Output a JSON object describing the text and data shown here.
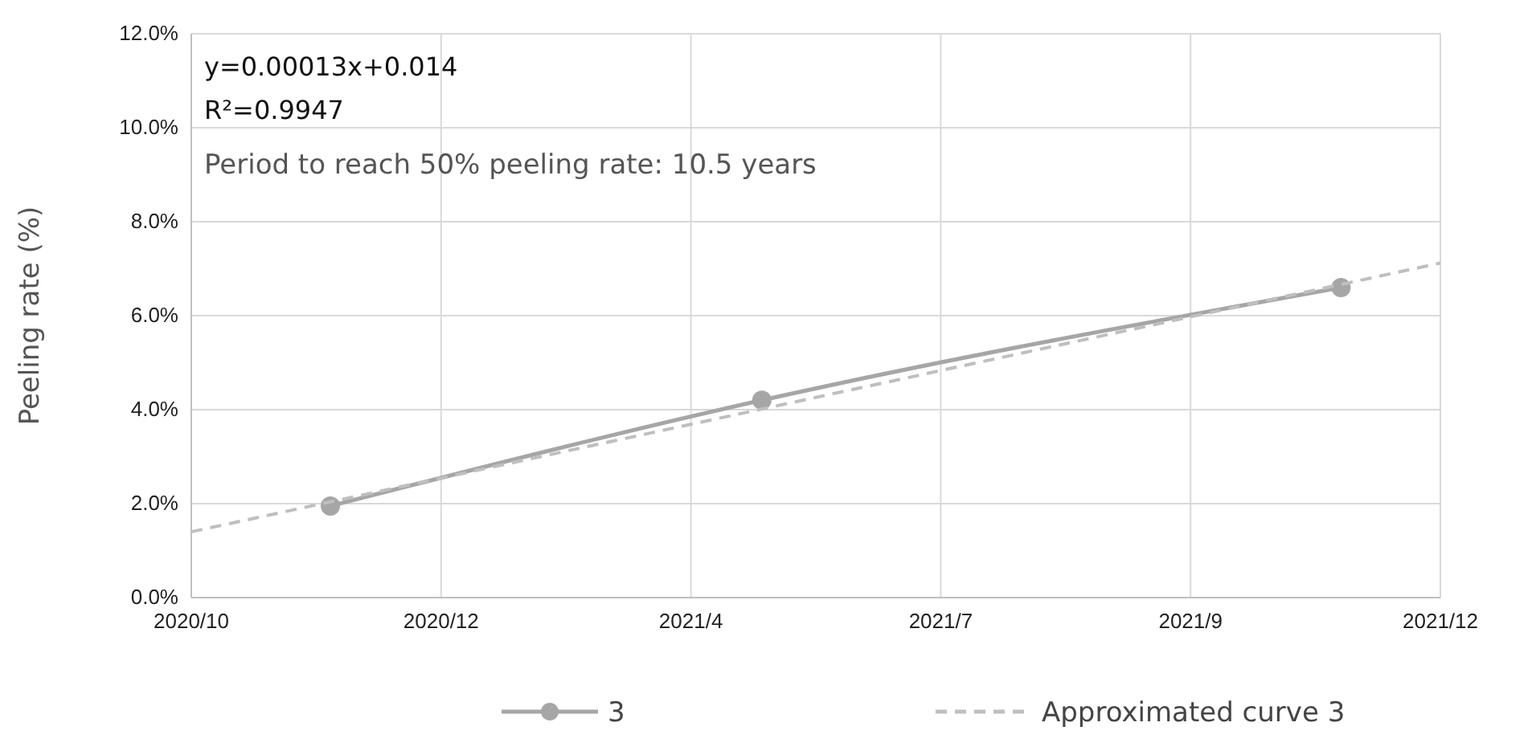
{
  "chart_data": {
    "type": "line",
    "ylabel": "Peeling rate (%)",
    "xlim": [
      "2020-10-01",
      "2021-12-15"
    ],
    "xticks": [
      {
        "value": "2020-10-01",
        "label": "2020/10"
      },
      {
        "value": "2020-12-28",
        "label": "2020/12"
      },
      {
        "value": "2021-03-26",
        "label": "2021/4"
      },
      {
        "value": "2021-06-22",
        "label": "2021/7"
      },
      {
        "value": "2021-09-18",
        "label": "2021/9"
      },
      {
        "value": "2021-12-15",
        "label": "2021/12"
      }
    ],
    "ylim": [
      0,
      12
    ],
    "yticks": [
      {
        "value": 0,
        "label": "0.0%"
      },
      {
        "value": 2,
        "label": "2.0%"
      },
      {
        "value": 4,
        "label": "4.0%"
      },
      {
        "value": 6,
        "label": "6.0%"
      },
      {
        "value": 8,
        "label": "8.0%"
      },
      {
        "value": 10,
        "label": "10.0%"
      },
      {
        "value": 12,
        "label": "12.0%"
      }
    ],
    "grid": true,
    "legend": "bottom",
    "series": [
      {
        "name": "3",
        "color": "#a6a6a6",
        "x": [
          "2020-11-19",
          "2021-04-20",
          "2021-11-10"
        ],
        "values": [
          1.95,
          4.2,
          6.6
        ],
        "marker": "circle",
        "line_style": "solid"
      },
      {
        "name": "Approximated curve 3",
        "color": "#bfbfbf",
        "x": [
          "2020-10-01",
          "2021-12-15"
        ],
        "values": [
          1.4,
          7.12
        ],
        "marker": "none",
        "line_style": "dashed"
      }
    ],
    "annotations": [
      "y=0.00013x+0.014",
      "R²=0.9947",
      "Period to reach 50% peeling rate: 10.5 years"
    ]
  }
}
